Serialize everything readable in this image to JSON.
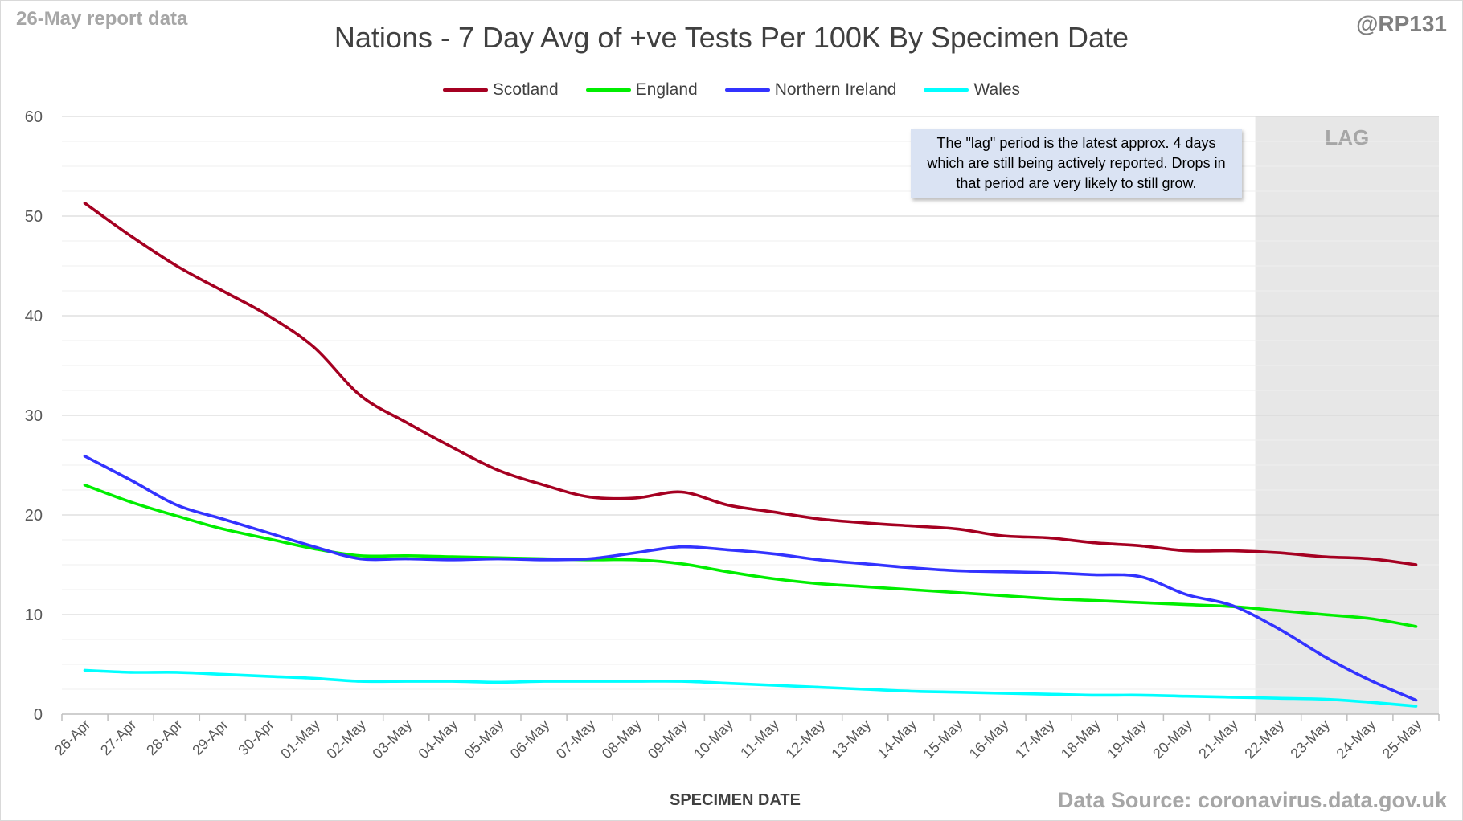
{
  "header": {
    "report_label": "26-May report data",
    "handle": "@RP131",
    "title": "Nations - 7 Day Avg of +ve Tests Per 100K By Specimen Date"
  },
  "footer": {
    "source": "Data Source: coronavirus.data.gov.uk"
  },
  "annotation": {
    "lag_label": "LAG",
    "note": "The \"lag\" period is the latest approx. 4 days which are still being actively reported. Drops in that period are very likely to still grow."
  },
  "chart_data": {
    "type": "line",
    "title": "Nations - 7 Day Avg of +ve Tests Per 100K By Specimen Date",
    "xlabel": "SPECIMEN DATE",
    "ylabel": "",
    "ylim": [
      0,
      60
    ],
    "yticks": [
      0,
      10,
      20,
      30,
      40,
      50,
      60
    ],
    "grid": true,
    "legend_position": "top",
    "lag_start": "22-May",
    "categories": [
      "26-Apr",
      "27-Apr",
      "28-Apr",
      "29-Apr",
      "30-Apr",
      "01-May",
      "02-May",
      "03-May",
      "04-May",
      "05-May",
      "06-May",
      "07-May",
      "08-May",
      "09-May",
      "10-May",
      "11-May",
      "12-May",
      "13-May",
      "14-May",
      "15-May",
      "16-May",
      "17-May",
      "18-May",
      "19-May",
      "20-May",
      "21-May",
      "22-May",
      "23-May",
      "24-May",
      "25-May"
    ],
    "series": [
      {
        "name": "Scotland",
        "color": "#a50021",
        "values": [
          51.3,
          48.0,
          45.0,
          42.5,
          40.0,
          36.8,
          32.0,
          29.3,
          26.8,
          24.5,
          23.0,
          21.8,
          21.7,
          22.3,
          21.0,
          20.3,
          19.6,
          19.2,
          18.9,
          18.6,
          17.9,
          17.7,
          17.2,
          16.9,
          16.4,
          16.4,
          16.2,
          15.8,
          15.6,
          15.0
        ]
      },
      {
        "name": "England",
        "color": "#00ee00",
        "values": [
          23.0,
          21.3,
          19.9,
          18.6,
          17.6,
          16.6,
          15.9,
          15.9,
          15.8,
          15.7,
          15.6,
          15.5,
          15.5,
          15.1,
          14.3,
          13.6,
          13.1,
          12.8,
          12.5,
          12.2,
          11.9,
          11.6,
          11.4,
          11.2,
          11.0,
          10.8,
          10.4,
          10.0,
          9.6,
          8.8
        ]
      },
      {
        "name": "Northern Ireland",
        "color": "#3333ff",
        "values": [
          25.9,
          23.5,
          21.0,
          19.6,
          18.2,
          16.8,
          15.6,
          15.6,
          15.5,
          15.6,
          15.5,
          15.6,
          16.2,
          16.8,
          16.5,
          16.1,
          15.5,
          15.1,
          14.7,
          14.4,
          14.3,
          14.2,
          14.0,
          13.8,
          12.0,
          10.9,
          8.6,
          5.8,
          3.4,
          1.4
        ]
      },
      {
        "name": "Wales",
        "color": "#00ffff",
        "values": [
          4.4,
          4.2,
          4.2,
          4.0,
          3.8,
          3.6,
          3.3,
          3.3,
          3.3,
          3.2,
          3.3,
          3.3,
          3.3,
          3.3,
          3.1,
          2.9,
          2.7,
          2.5,
          2.3,
          2.2,
          2.1,
          2.0,
          1.9,
          1.9,
          1.8,
          1.7,
          1.6,
          1.5,
          1.2,
          0.8
        ]
      }
    ]
  }
}
